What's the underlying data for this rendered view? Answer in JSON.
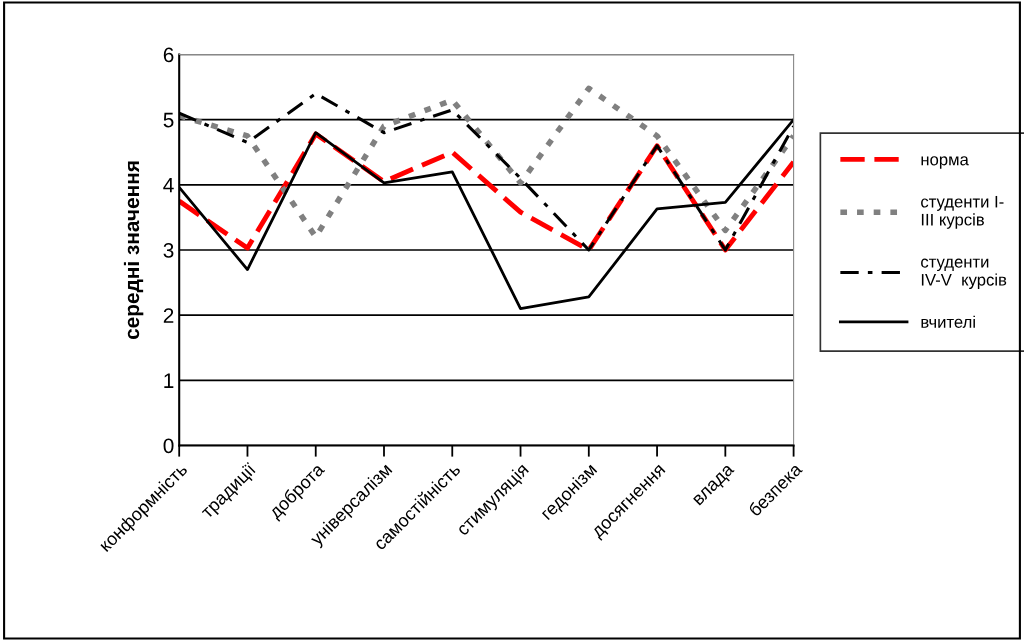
{
  "chart_data": {
    "type": "line",
    "ylabel": "середні значення",
    "categories": [
      "конформність",
      "традиції",
      "доброта",
      "універсалізм",
      "самостійність",
      "стимуляція",
      "гедонізм",
      "досягнення",
      "влада",
      "безпека"
    ],
    "series": [
      {
        "name": "норма",
        "color": "#ff0000",
        "line_style": "dashed",
        "values": [
          3.75,
          3.03,
          4.78,
          4.05,
          4.5,
          3.58,
          3.0,
          4.6,
          3.0,
          4.35
        ]
      },
      {
        "name": "студенти I-\nIII курсів",
        "color": "#808080",
        "line_style": "dotted",
        "values": [
          5.06,
          4.75,
          3.2,
          4.9,
          5.3,
          4.03,
          5.48,
          4.75,
          3.3,
          4.75
        ]
      },
      {
        "name": "студенти\nIV-V  курсів",
        "color": "#000000",
        "line_style": "dashdot",
        "values": [
          5.1,
          4.65,
          5.4,
          4.8,
          5.15,
          4.1,
          3.0,
          4.6,
          3.0,
          4.9
        ]
      },
      {
        "name": "вчителі",
        "color": "#000000",
        "line_style": "solid",
        "values": [
          3.96,
          2.7,
          4.8,
          4.03,
          4.2,
          2.1,
          2.28,
          3.63,
          3.73,
          5.0
        ]
      }
    ],
    "ylim": [
      0,
      6
    ],
    "yticks": [
      0,
      1,
      2,
      3,
      4,
      5,
      6
    ],
    "grid": "y",
    "legend": "right",
    "marker": "none"
  }
}
